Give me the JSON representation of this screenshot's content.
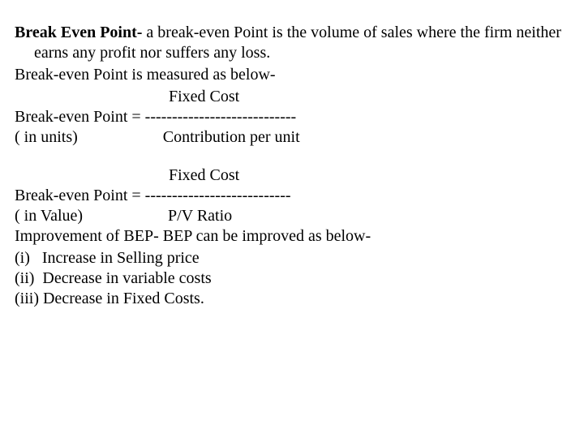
{
  "text_color": "#000000",
  "background_color": "#ffffff",
  "font_family": "Times New Roman",
  "font_size_pt": 15,
  "definition": {
    "term": "Break Even Point-",
    "body": " a break-even Point is the volume of sales where the firm neither earns any profit nor suffers any loss."
  },
  "measured": "Break-even Point is measured as below-",
  "formula1": {
    "numerator_line": "                                      Fixed Cost",
    "equals_line": "Break-even Point = ----------------------------",
    "qualifier_line": "( in units)                     Contribution per unit"
  },
  "formula2": {
    "numerator_line": "                                      Fixed Cost",
    "equals_line": "Break-even Point = ---------------------------",
    "qualifier_line": "( in Value)                     P/V Ratio"
  },
  "improvement_intro": "Improvement of BEP- BEP can be improved as below-",
  "items": {
    "i": "(i)   Increase in Selling price",
    "ii": "(ii)  Decrease in variable costs",
    "iii": "(iii) Decrease in Fixed Costs."
  }
}
